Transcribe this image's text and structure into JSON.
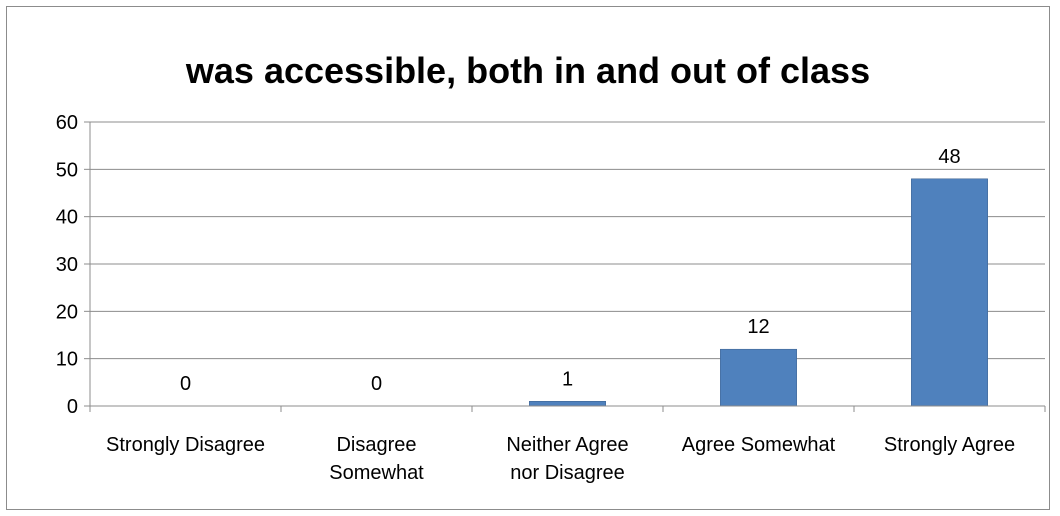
{
  "chart_data": {
    "type": "bar",
    "title": "was accessible, both in and out of class",
    "categories": [
      "Strongly Disagree",
      "Disagree Somewhat",
      "Neither Agree nor Disagree",
      "Agree Somewhat",
      "Strongly Agree"
    ],
    "category_lines": [
      [
        "Strongly Disagree"
      ],
      [
        "Disagree",
        "Somewhat"
      ],
      [
        "Neither Agree",
        "nor Disagree"
      ],
      [
        "Agree Somewhat"
      ],
      [
        "Strongly Agree"
      ]
    ],
    "values": [
      0,
      0,
      1,
      12,
      48
    ],
    "data_labels": [
      "0",
      "0",
      "1",
      "12",
      "48"
    ],
    "ylim": [
      0,
      60
    ],
    "yticks": [
      0,
      10,
      20,
      30,
      40,
      50,
      60
    ],
    "xlabel": "",
    "ylabel": "",
    "grid": true,
    "legend": "none",
    "colors": {
      "bar": "#4f81bd",
      "bar_edge": "#385d8a",
      "grid": "#8c8c8c",
      "axis": "#8c8c8c",
      "frame": "#8c8c8c"
    }
  }
}
